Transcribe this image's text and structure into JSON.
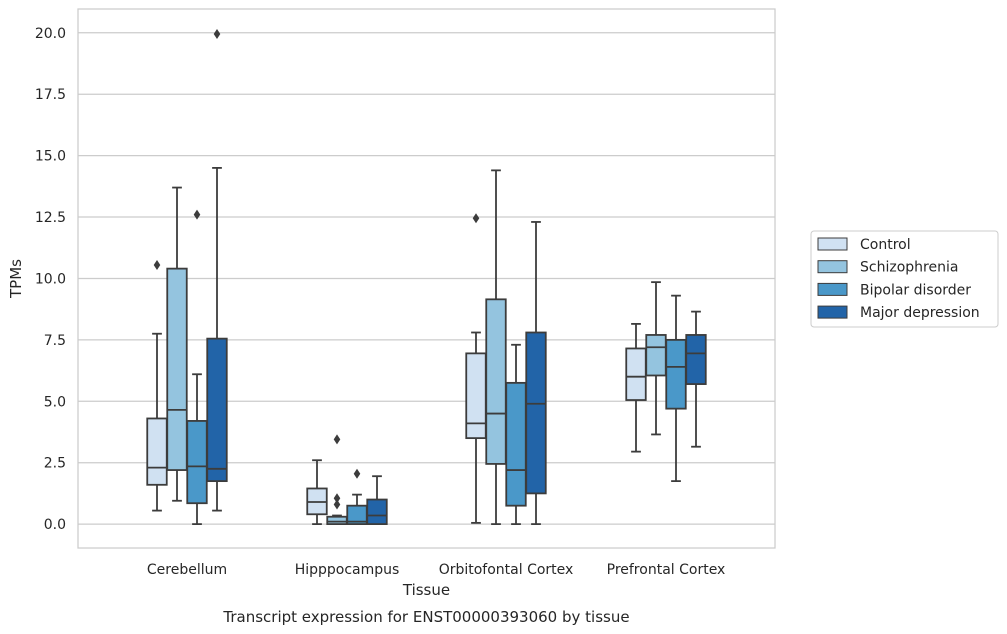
{
  "chart_data": {
    "type": "boxplot",
    "title": "",
    "caption": "Transcript expression for ENST00000393060 by tissue",
    "xlabel": "Tissue",
    "ylabel": "TPMs",
    "ylim": [
      -0.9,
      21.0
    ],
    "yticks": [
      0.0,
      2.5,
      5.0,
      7.5,
      10.0,
      12.5,
      15.0,
      17.5,
      20.0
    ],
    "ytick_labels": [
      "0.0",
      "2.5",
      "5.0",
      "7.5",
      "10.0",
      "12.5",
      "15.0",
      "17.5",
      "20.0"
    ],
    "grid": "horizontal",
    "legend_position": "outside-right",
    "categories": [
      "Cerebellum",
      "Hipppocampus",
      "Orbitofontal Cortex",
      "Prefrontal Cortex"
    ],
    "series": [
      {
        "name": "Control",
        "color": "#d0e1f2",
        "boxes": [
          {
            "whislo": 0.55,
            "q1": 1.6,
            "med": 2.3,
            "q3": 4.3,
            "whishi": 7.75,
            "fliers": [
              10.55
            ]
          },
          {
            "whislo": 0.0,
            "q1": 0.4,
            "med": 0.9,
            "q3": 1.45,
            "whishi": 2.6,
            "fliers": []
          },
          {
            "whislo": 0.05,
            "q1": 3.5,
            "med": 4.1,
            "q3": 6.95,
            "whishi": 7.8,
            "fliers": [
              12.45
            ]
          },
          {
            "whislo": 2.95,
            "q1": 5.05,
            "med": 6.0,
            "q3": 7.15,
            "whishi": 8.15,
            "fliers": []
          }
        ]
      },
      {
        "name": "Schizophrenia",
        "color": "#94c4df",
        "boxes": [
          {
            "whislo": 0.95,
            "q1": 2.2,
            "med": 4.65,
            "q3": 10.4,
            "whishi": 13.7,
            "fliers": []
          },
          {
            "whislo": 0.0,
            "q1": 0.0,
            "med": 0.1,
            "q3": 0.3,
            "whishi": 0.35,
            "fliers": [
              0.8,
              1.05,
              3.45
            ]
          },
          {
            "whislo": 0.0,
            "q1": 2.45,
            "med": 4.5,
            "q3": 9.15,
            "whishi": 14.4,
            "fliers": []
          },
          {
            "whislo": 3.65,
            "q1": 6.05,
            "med": 7.2,
            "q3": 7.7,
            "whishi": 9.85,
            "fliers": []
          }
        ]
      },
      {
        "name": "Bipolar disorder",
        "color": "#4a98c9",
        "boxes": [
          {
            "whislo": 0.0,
            "q1": 0.85,
            "med": 2.35,
            "q3": 4.2,
            "whishi": 6.1,
            "fliers": [
              12.6
            ]
          },
          {
            "whislo": 0.0,
            "q1": 0.0,
            "med": 0.1,
            "q3": 0.75,
            "whishi": 1.2,
            "fliers": [
              2.05
            ]
          },
          {
            "whislo": 0.0,
            "q1": 0.75,
            "med": 2.2,
            "q3": 5.75,
            "whishi": 7.3,
            "fliers": []
          },
          {
            "whislo": 1.75,
            "q1": 4.7,
            "med": 6.4,
            "q3": 7.5,
            "whishi": 9.3,
            "fliers": []
          }
        ]
      },
      {
        "name": "Major depression",
        "color": "#2264a8",
        "boxes": [
          {
            "whislo": 0.55,
            "q1": 1.75,
            "med": 2.25,
            "q3": 7.55,
            "whishi": 14.5,
            "fliers": [
              19.95
            ]
          },
          {
            "whislo": 0.0,
            "q1": 0.0,
            "med": 0.35,
            "q3": 1.0,
            "whishi": 1.95,
            "fliers": []
          },
          {
            "whislo": 0.0,
            "q1": 1.25,
            "med": 4.9,
            "q3": 7.8,
            "whishi": 12.3,
            "fliers": []
          },
          {
            "whislo": 3.15,
            "q1": 5.7,
            "med": 6.95,
            "q3": 7.7,
            "whishi": 8.65,
            "fliers": []
          }
        ]
      }
    ]
  }
}
